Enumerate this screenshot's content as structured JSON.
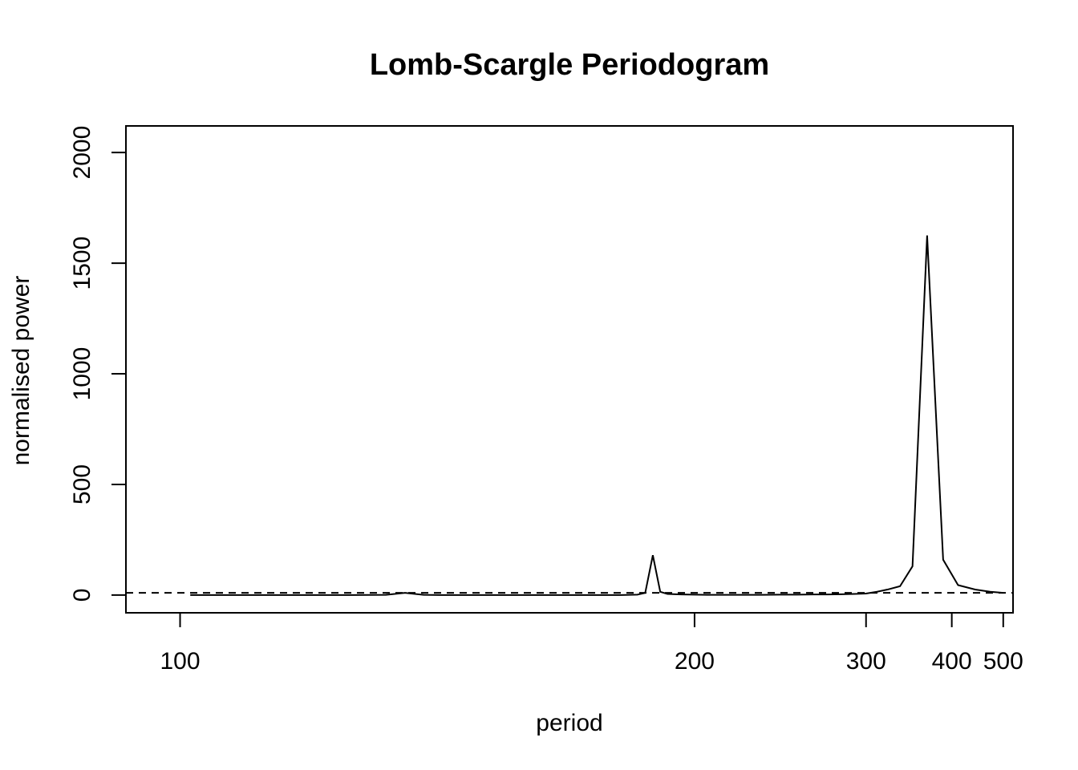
{
  "chart_data": {
    "type": "line",
    "title": "Lomb-Scargle Periodogram",
    "xlabel": "period",
    "ylabel": "normalised power",
    "x_scale": "reciprocal",
    "xlim": [
      95,
      525
    ],
    "ylim": [
      -80,
      2120
    ],
    "x_ticks": [
      100,
      200,
      300,
      400,
      500
    ],
    "y_ticks": [
      0,
      500,
      1000,
      1500,
      2000
    ],
    "grid": false,
    "legend": "none",
    "series": [
      {
        "line_style": "solid",
        "color": "#000000",
        "x": [
          101,
          110,
          115,
          120,
          125,
          128,
          131,
          134,
          137,
          140,
          143,
          146,
          150,
          155,
          160,
          165,
          170,
          175,
          180,
          182.5,
          185,
          187.5,
          190,
          195,
          200,
          205,
          210,
          220,
          230,
          240,
          250,
          260,
          270,
          280,
          290,
          300,
          310,
          320,
          333,
          347,
          365,
          387,
          410,
          440,
          470,
          500
        ],
        "values": [
          0,
          0,
          0,
          0,
          1,
          10,
          1,
          0,
          0,
          0,
          0,
          0,
          0,
          0,
          0,
          0,
          0,
          0,
          2,
          10,
          180,
          15,
          5,
          3,
          2,
          1,
          1,
          1,
          1,
          2,
          2,
          3,
          3,
          4,
          5,
          7,
          15,
          25,
          40,
          130,
          1625,
          160,
          45,
          25,
          15,
          10
        ]
      },
      {
        "line_style": "dashed",
        "color": "#000000",
        "values": [
          10
        ]
      }
    ]
  }
}
